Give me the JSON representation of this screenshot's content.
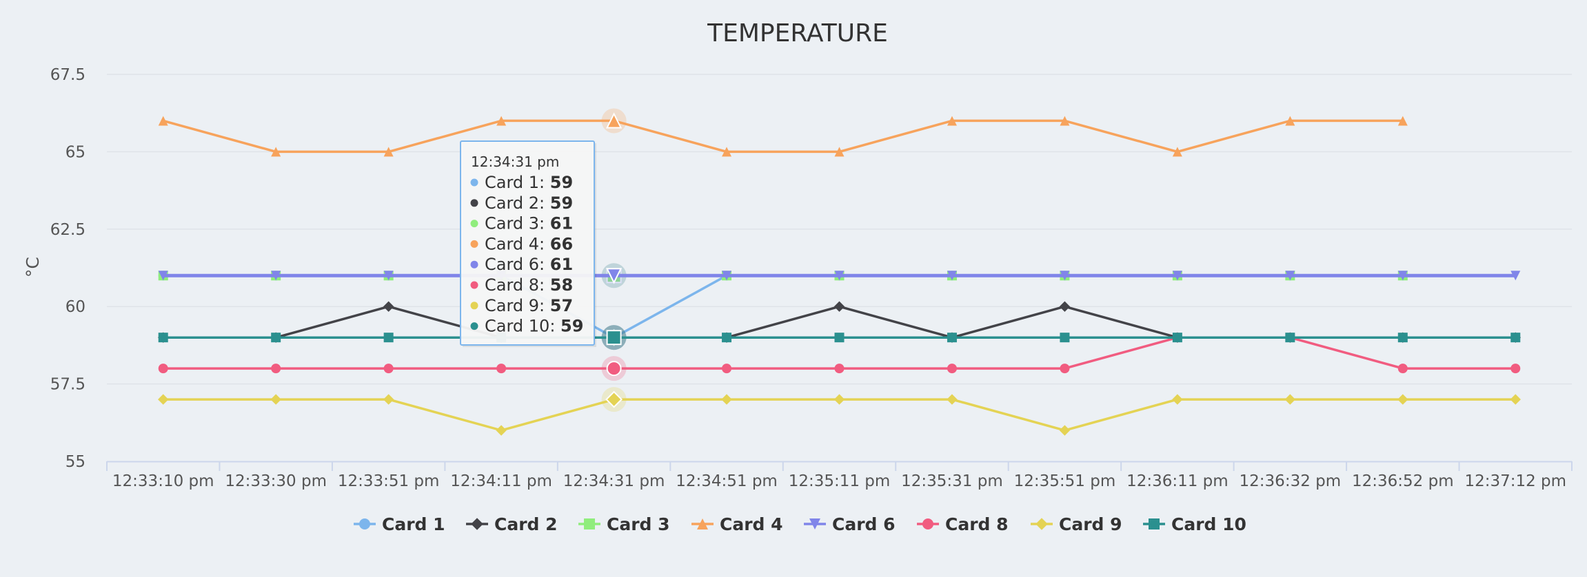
{
  "chart_data": {
    "type": "line",
    "title": "TEMPERATURE",
    "xlabel": "",
    "ylabel": "°C",
    "ylim": [
      55,
      67.5
    ],
    "yticks": [
      "55",
      "57.5",
      "60",
      "62.5",
      "65",
      "67.5"
    ],
    "grid": true,
    "legend_position": "bottom-center",
    "categories": [
      "12:33:10 pm",
      "12:33:30 pm",
      "12:33:51 pm",
      "12:34:11 pm",
      "12:34:31 pm",
      "12:34:51 pm",
      "12:35:11 pm",
      "12:35:31 pm",
      "12:35:51 pm",
      "12:36:11 pm",
      "12:36:32 pm",
      "12:36:52 pm",
      "12:37:12 pm"
    ],
    "series": [
      {
        "name": "Card 1",
        "color": "#7cb5ec",
        "marker": "circle",
        "values": [
          61,
          61,
          61,
          61,
          59,
          61,
          61,
          61,
          61,
          61,
          61,
          61,
          null
        ]
      },
      {
        "name": "Card 2",
        "color": "#434348",
        "marker": "diamond",
        "values": [
          59,
          59,
          60,
          59,
          59,
          59,
          60,
          59,
          60,
          59,
          59,
          59,
          59
        ]
      },
      {
        "name": "Card 3",
        "color": "#90ed7d",
        "marker": "square",
        "values": [
          61,
          61,
          61,
          61,
          61,
          61,
          61,
          61,
          61,
          61,
          61,
          61,
          null
        ]
      },
      {
        "name": "Card 4",
        "color": "#f7a35c",
        "marker": "triangle",
        "values": [
          66,
          65,
          65,
          66,
          66,
          65,
          65,
          66,
          66,
          65,
          66,
          66,
          null
        ]
      },
      {
        "name": "Card 6",
        "color": "#8085e9",
        "marker": "triangle-down",
        "values": [
          61,
          61,
          61,
          61,
          61,
          61,
          61,
          61,
          61,
          61,
          61,
          61,
          61
        ]
      },
      {
        "name": "Card 8",
        "color": "#f15c80",
        "marker": "circle",
        "values": [
          58,
          58,
          58,
          58,
          58,
          58,
          58,
          58,
          58,
          59,
          59,
          58,
          58
        ]
      },
      {
        "name": "Card 9",
        "color": "#e4d354",
        "marker": "diamond",
        "values": [
          57,
          57,
          57,
          56,
          57,
          57,
          57,
          57,
          56,
          57,
          57,
          57,
          57
        ]
      },
      {
        "name": "Card 10",
        "color": "#2b908f",
        "marker": "square",
        "values": [
          59,
          59,
          59,
          59,
          59,
          59,
          59,
          59,
          59,
          59,
          59,
          59,
          59
        ]
      }
    ],
    "tooltip": {
      "time": "12:34:31 pm",
      "hover_index": 4,
      "entries": [
        {
          "label": "Card 1: ",
          "value": "59"
        },
        {
          "label": "Card 2: ",
          "value": "59"
        },
        {
          "label": "Card 3: ",
          "value": "61"
        },
        {
          "label": "Card 4: ",
          "value": "66"
        },
        {
          "label": "Card 6: ",
          "value": "61"
        },
        {
          "label": "Card 8: ",
          "value": "58"
        },
        {
          "label": "Card 9: ",
          "value": "57"
        },
        {
          "label": "Card 10: ",
          "value": "59"
        }
      ]
    }
  }
}
